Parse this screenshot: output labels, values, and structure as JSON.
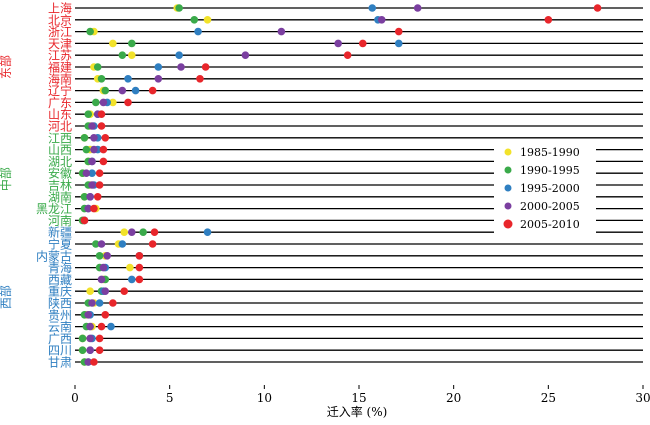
{
  "chart_data": {
    "type": "scatter",
    "xlabel": "迁入率 (%)",
    "xlim": [
      0,
      30
    ],
    "xticks": [
      0,
      5,
      10,
      15,
      20,
      25,
      30
    ],
    "legend_position": "right-middle",
    "series": [
      {
        "name": "1985-1990",
        "color": "#f2e22a"
      },
      {
        "name": "1990-1995",
        "color": "#3aaa4a"
      },
      {
        "name": "1995-2000",
        "color": "#2f7fc1"
      },
      {
        "name": "2000-2005",
        "color": "#7b3fa0"
      },
      {
        "name": "2005-2010",
        "color": "#e8262b"
      }
    ],
    "regions": [
      {
        "name": "东部",
        "color": "#e8262b",
        "first": 0,
        "last": 10
      },
      {
        "name": "中部",
        "color": "#3aaa4a",
        "first": 11,
        "last": 18
      },
      {
        "name": "西部",
        "color": "#2f7fc1",
        "first": 19,
        "last": 30
      }
    ],
    "provinces": [
      {
        "name": "上海",
        "values": [
          5.4,
          5.5,
          15.7,
          18.1,
          27.6
        ]
      },
      {
        "name": "北京",
        "values": [
          7.0,
          6.3,
          16.0,
          16.2,
          25.0
        ]
      },
      {
        "name": "浙江",
        "values": [
          1.0,
          0.8,
          6.5,
          10.9,
          17.1
        ]
      },
      {
        "name": "天津",
        "values": [
          2.0,
          3.0,
          17.1,
          13.9,
          15.2
        ]
      },
      {
        "name": "江苏",
        "values": [
          3.0,
          2.5,
          5.5,
          9.0,
          14.4
        ]
      },
      {
        "name": "福建",
        "values": [
          1.0,
          1.2,
          4.4,
          5.6,
          6.9
        ]
      },
      {
        "name": "海南",
        "values": [
          1.2,
          1.4,
          2.8,
          4.4,
          6.6
        ]
      },
      {
        "name": "辽宁",
        "values": [
          1.5,
          1.6,
          3.2,
          2.5,
          4.1
        ]
      },
      {
        "name": "广东",
        "values": [
          2.0,
          1.1,
          1.7,
          1.5,
          2.8
        ]
      },
      {
        "name": "山东",
        "values": [
          0.8,
          0.7,
          1.2,
          1.2,
          1.4
        ]
      },
      {
        "name": "河北",
        "values": [
          0.8,
          0.7,
          1.0,
          0.9,
          1.4
        ]
      },
      {
        "name": "江西",
        "values": [
          0.5,
          0.5,
          1.2,
          1.0,
          1.6
        ]
      },
      {
        "name": "山西",
        "values": [
          0.8,
          0.6,
          1.2,
          1.0,
          1.5
        ]
      },
      {
        "name": "湖北",
        "values": [
          0.7,
          0.7,
          0.9,
          0.9,
          1.5
        ]
      },
      {
        "name": "安徽",
        "values": [
          0.4,
          0.4,
          0.9,
          0.6,
          1.3
        ]
      },
      {
        "name": "吉林",
        "values": [
          0.8,
          0.7,
          1.0,
          0.9,
          1.3
        ]
      },
      {
        "name": "湖南",
        "values": [
          0.5,
          0.5,
          0.8,
          0.8,
          1.2
        ]
      },
      {
        "name": "黑龙江",
        "values": [
          1.1,
          0.5,
          0.7,
          0.7,
          1.0
        ]
      },
      {
        "name": "河南",
        "values": [
          0.4,
          0.4,
          0.5,
          0.5,
          0.5
        ]
      },
      {
        "name": "新疆",
        "values": [
          2.6,
          3.6,
          7.0,
          3.0,
          4.2
        ]
      },
      {
        "name": "宁夏",
        "values": [
          2.3,
          1.1,
          2.5,
          1.4,
          4.1
        ]
      },
      {
        "name": "内蒙古",
        "values": [
          1.6,
          1.3,
          3.4,
          1.7,
          3.4
        ]
      },
      {
        "name": "青海",
        "values": [
          2.9,
          1.3,
          1.6,
          1.5,
          3.4
        ]
      },
      {
        "name": "西藏",
        "values": [
          1.5,
          1.6,
          3.0,
          1.4,
          3.4
        ]
      },
      {
        "name": "重庆",
        "values": [
          0.8,
          1.4,
          1.5,
          1.6,
          2.6
        ]
      },
      {
        "name": "陕西",
        "values": [
          1.0,
          0.7,
          1.3,
          0.9,
          2.0
        ]
      },
      {
        "name": "贵州",
        "values": [
          0.6,
          0.5,
          0.8,
          0.7,
          1.6
        ]
      },
      {
        "name": "云南",
        "values": [
          0.9,
          0.6,
          1.9,
          0.8,
          1.4
        ]
      },
      {
        "name": "广西",
        "values": [
          0.4,
          0.4,
          0.9,
          0.8,
          1.3
        ]
      },
      {
        "name": "四川",
        "values": [
          0.4,
          0.4,
          0.8,
          0.8,
          1.3
        ]
      },
      {
        "name": "甘肃",
        "values": [
          0.5,
          0.5,
          0.7,
          0.7,
          1.0
        ]
      }
    ]
  }
}
